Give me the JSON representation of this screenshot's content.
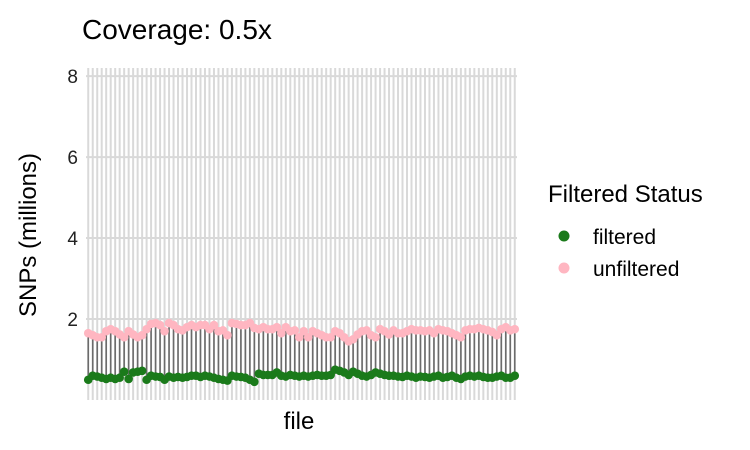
{
  "chart_data": {
    "type": "scatter",
    "title": "Coverage: 0.5x",
    "xlabel": "file",
    "ylabel": "SNPs (millions)",
    "ylim": [
      0,
      8.2
    ],
    "yticks": [
      2,
      4,
      6,
      8
    ],
    "grid": true,
    "x_tick_labels_shown": false,
    "legend": {
      "title": "Filtered Status",
      "position": "right",
      "entries": [
        {
          "label": "filtered",
          "color": "#1a7a1a"
        },
        {
          "label": "unfiltered",
          "color": "#ffb6c1"
        }
      ]
    },
    "segment_color": "#6b6b6b",
    "series": [
      {
        "name": "filtered",
        "color": "#1a7a1a",
        "values": [
          0.5,
          0.6,
          0.58,
          0.55,
          0.52,
          0.55,
          0.52,
          0.55,
          0.7,
          0.52,
          0.68,
          0.7,
          0.72,
          0.5,
          0.6,
          0.58,
          0.57,
          0.5,
          0.58,
          0.55,
          0.57,
          0.55,
          0.57,
          0.6,
          0.6,
          0.57,
          0.6,
          0.58,
          0.55,
          0.52,
          0.5,
          0.48,
          0.6,
          0.58,
          0.57,
          0.55,
          0.5,
          0.45,
          0.65,
          0.62,
          0.62,
          0.62,
          0.68,
          0.6,
          0.58,
          0.62,
          0.6,
          0.58,
          0.6,
          0.58,
          0.6,
          0.62,
          0.6,
          0.6,
          0.62,
          0.75,
          0.72,
          0.68,
          0.62,
          0.7,
          0.65,
          0.6,
          0.58,
          0.62,
          0.68,
          0.65,
          0.62,
          0.6,
          0.6,
          0.58,
          0.57,
          0.6,
          0.58,
          0.55,
          0.58,
          0.57,
          0.55,
          0.58,
          0.6,
          0.55,
          0.57,
          0.6,
          0.55,
          0.52,
          0.58,
          0.6,
          0.58,
          0.6,
          0.57,
          0.55,
          0.55,
          0.58,
          0.6,
          0.55,
          0.55,
          0.6
        ]
      },
      {
        "name": "unfiltered",
        "color": "#ffb6c1",
        "values": [
          1.65,
          1.6,
          1.55,
          1.55,
          1.7,
          1.75,
          1.7,
          1.62,
          1.55,
          1.7,
          1.62,
          1.55,
          1.6,
          1.75,
          1.88,
          1.9,
          1.85,
          1.7,
          1.9,
          1.85,
          1.75,
          1.72,
          1.8,
          1.85,
          1.8,
          1.85,
          1.85,
          1.75,
          1.85,
          1.7,
          1.72,
          1.6,
          1.9,
          1.88,
          1.85,
          1.85,
          1.9,
          1.78,
          1.75,
          1.8,
          1.75,
          1.75,
          1.8,
          1.65,
          1.8,
          1.7,
          1.72,
          1.55,
          1.7,
          1.55,
          1.7,
          1.65,
          1.6,
          1.55,
          1.55,
          1.7,
          1.65,
          1.55,
          1.45,
          1.5,
          1.62,
          1.7,
          1.72,
          1.6,
          1.55,
          1.75,
          1.7,
          1.62,
          1.72,
          1.65,
          1.65,
          1.7,
          1.75,
          1.72,
          1.72,
          1.7,
          1.72,
          1.65,
          1.75,
          1.72,
          1.7,
          1.65,
          1.6,
          1.55,
          1.72,
          1.75,
          1.75,
          1.78,
          1.75,
          1.72,
          1.68,
          1.6,
          1.75,
          1.8,
          1.72,
          1.75
        ]
      }
    ]
  }
}
